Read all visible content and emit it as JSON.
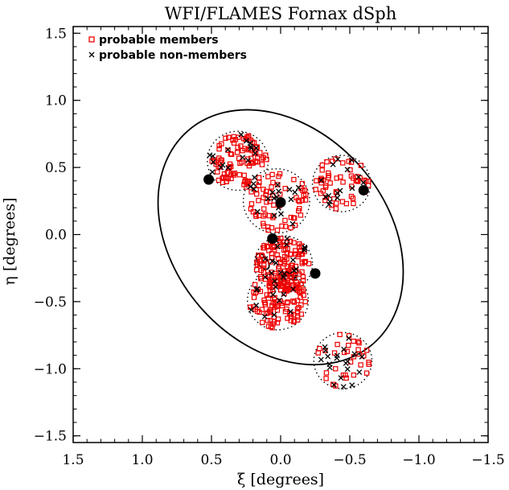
{
  "chart_data": {
    "type": "scatter",
    "title": "WFI/FLAMES Fornax dSph",
    "xlabel": "ξ [degrees]",
    "ylabel": "η [degrees]",
    "xlim": [
      1.5,
      -1.5
    ],
    "ylim": [
      -1.55,
      1.55
    ],
    "x_ticks": [
      1.5,
      1.0,
      0.5,
      0.0,
      -0.5,
      -1.0,
      -1.5
    ],
    "x_tick_labels": [
      "1.5",
      "1.0",
      "0.5",
      "0.0",
      "−0.5",
      "−1.0",
      "−1.5"
    ],
    "y_ticks": [
      1.5,
      1.0,
      0.5,
      0.0,
      -0.5,
      -1.0,
      -1.5
    ],
    "y_tick_labels": [
      "1.5",
      "1.0",
      "0.5",
      "0.0",
      "−0.5",
      "−1.0",
      "−1.5"
    ],
    "legend": {
      "position": "top-left",
      "entries": [
        {
          "label": "probable members",
          "marker": "open-square",
          "color": "#ee0000"
        },
        {
          "label": "probable non-members",
          "marker": "x",
          "color": "#000000"
        }
      ]
    },
    "tidal_ellipse": {
      "center": [
        0.0,
        -0.02
      ],
      "semi_major_deg": 1.02,
      "semi_minor_deg": 0.77,
      "major_axis_angle_deg": 41
    },
    "core_ellipse": {
      "center": [
        0.13,
        -0.2
      ],
      "semi_major_deg": 0.065,
      "semi_minor_deg": 0.035,
      "major_axis_angle_deg": 35
    },
    "fields": [
      {
        "center": [
          0.31,
          0.55
        ],
        "radius": 0.22,
        "members": 95,
        "non_members": 18
      },
      {
        "center": [
          0.03,
          0.25
        ],
        "radius": 0.24,
        "members": 68,
        "non_members": 18
      },
      {
        "center": [
          -0.44,
          0.38
        ],
        "radius": 0.21,
        "members": 55,
        "non_members": 15
      },
      {
        "center": [
          -0.02,
          -0.22
        ],
        "radius": 0.21,
        "members": 130,
        "non_members": 20
      },
      {
        "center": [
          0.02,
          -0.49
        ],
        "radius": 0.22,
        "members": 105,
        "non_members": 15
      },
      {
        "center": [
          -0.45,
          -0.94
        ],
        "radius": 0.21,
        "members": 32,
        "non_members": 20
      }
    ],
    "globular_clusters": [
      {
        "x": 0.52,
        "y": 0.41
      },
      {
        "x": 0.0,
        "y": 0.24
      },
      {
        "x": -0.6,
        "y": 0.33
      },
      {
        "x": 0.06,
        "y": -0.03
      },
      {
        "x": -0.25,
        "y": -0.29
      }
    ],
    "colors": {
      "members": "#ee0000",
      "non_members": "#000000",
      "axes": "#000000"
    }
  }
}
